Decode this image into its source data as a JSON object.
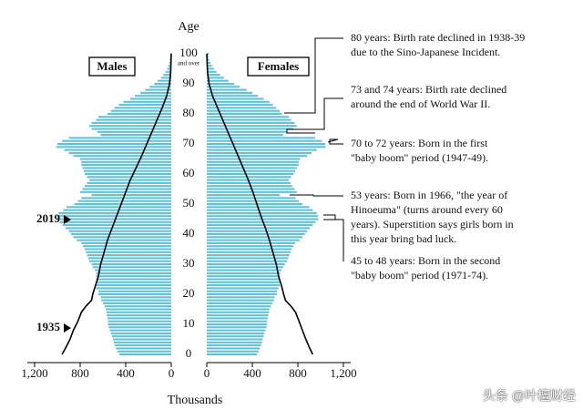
{
  "chart_data": {
    "type": "population-pyramid",
    "title": "Age",
    "x_title": "Thousands",
    "left_label": "Males",
    "right_label": "Females",
    "x_ticks": {
      "male": [
        "1,200",
        "800",
        "400",
        "0"
      ],
      "female": [
        "0",
        "400",
        "800",
        "1,200"
      ],
      "values": [
        1200,
        800,
        400,
        0
      ]
    },
    "xlim": [
      0,
      1200
    ],
    "ylim": [
      0,
      100
    ],
    "y_ticks": [
      "0",
      "10",
      "20",
      "30",
      "40",
      "50",
      "60",
      "70",
      "80",
      "90",
      "100"
    ],
    "y_top_extra": "and over",
    "bar_color": "#5bc1dc",
    "line_color": "#000000",
    "ages": [
      0,
      1,
      2,
      3,
      4,
      5,
      6,
      7,
      8,
      9,
      10,
      11,
      12,
      13,
      14,
      15,
      16,
      17,
      18,
      19,
      20,
      21,
      22,
      23,
      24,
      25,
      26,
      27,
      28,
      29,
      30,
      31,
      32,
      33,
      34,
      35,
      36,
      37,
      38,
      39,
      40,
      41,
      42,
      43,
      44,
      45,
      46,
      47,
      48,
      49,
      50,
      51,
      52,
      53,
      54,
      55,
      56,
      57,
      58,
      59,
      60,
      61,
      62,
      63,
      64,
      65,
      66,
      67,
      68,
      69,
      70,
      71,
      72,
      73,
      74,
      75,
      76,
      77,
      78,
      79,
      80,
      81,
      82,
      83,
      84,
      85,
      86,
      87,
      88,
      89,
      90,
      91,
      92,
      93,
      94,
      95,
      96,
      97,
      98,
      99,
      100
    ],
    "series": [
      {
        "name": "Males",
        "values": [
          455,
          475,
          485,
          495,
          505,
          510,
          520,
          530,
          540,
          550,
          555,
          555,
          560,
          565,
          570,
          575,
          585,
          600,
          615,
          620,
          640,
          640,
          660,
          670,
          660,
          660,
          660,
          660,
          670,
          690,
          700,
          720,
          730,
          740,
          750,
          760,
          775,
          790,
          830,
          860,
          880,
          900,
          930,
          955,
          980,
          1005,
          1000,
          990,
          950,
          920,
          850,
          820,
          790,
          700,
          800,
          780,
          760,
          740,
          720,
          740,
          760,
          770,
          780,
          790,
          790,
          800,
          860,
          900,
          940,
          1010,
          1000,
          960,
          900,
          620,
          650,
          700,
          720,
          700,
          660,
          640,
          560,
          530,
          500,
          460,
          420,
          360,
          320,
          270,
          230,
          190,
          150,
          120,
          90,
          70,
          50,
          36,
          26,
          18,
          13,
          9,
          10
        ]
      },
      {
        "name": "Females",
        "values": [
          440,
          455,
          465,
          475,
          485,
          490,
          500,
          505,
          515,
          525,
          530,
          530,
          535,
          540,
          545,
          550,
          560,
          575,
          590,
          595,
          615,
          615,
          630,
          640,
          640,
          640,
          640,
          645,
          655,
          670,
          685,
          705,
          715,
          725,
          735,
          745,
          760,
          775,
          815,
          840,
          860,
          880,
          905,
          930,
          955,
          980,
          975,
          965,
          930,
          900,
          840,
          810,
          780,
          640,
          790,
          770,
          750,
          735,
          720,
          740,
          760,
          775,
          790,
          805,
          810,
          820,
          880,
          920,
          965,
          1040,
          1040,
          1010,
          950,
          670,
          700,
          760,
          790,
          770,
          740,
          720,
          660,
          640,
          610,
          580,
          550,
          500,
          450,
          400,
          350,
          290,
          240,
          190,
          150,
          115,
          85,
          62,
          45,
          32,
          22,
          15,
          16
        ]
      }
    ],
    "lines": [
      {
        "side": "male",
        "points": [
          [
            0,
            960
          ],
          [
            2,
            930
          ],
          [
            5,
            890
          ],
          [
            8,
            860
          ],
          [
            11,
            820
          ],
          [
            14,
            790
          ],
          [
            16,
            750
          ],
          [
            18,
            700
          ],
          [
            20,
            690
          ],
          [
            23,
            665
          ],
          [
            26,
            640
          ],
          [
            30,
            620
          ],
          [
            34,
            590
          ],
          [
            38,
            560
          ],
          [
            42,
            520
          ],
          [
            46,
            480
          ],
          [
            50,
            440
          ],
          [
            54,
            400
          ],
          [
            58,
            360
          ],
          [
            62,
            310
          ],
          [
            66,
            260
          ],
          [
            70,
            215
          ],
          [
            74,
            170
          ],
          [
            78,
            125
          ],
          [
            82,
            80
          ],
          [
            86,
            40
          ],
          [
            90,
            15
          ],
          [
            94,
            5
          ],
          [
            100,
            0
          ]
        ]
      },
      {
        "side": "female",
        "points": [
          [
            0,
            930
          ],
          [
            2,
            905
          ],
          [
            5,
            870
          ],
          [
            8,
            840
          ],
          [
            11,
            810
          ],
          [
            14,
            780
          ],
          [
            16,
            740
          ],
          [
            18,
            690
          ],
          [
            20,
            675
          ],
          [
            23,
            655
          ],
          [
            26,
            630
          ],
          [
            30,
            610
          ],
          [
            34,
            580
          ],
          [
            38,
            550
          ],
          [
            42,
            515
          ],
          [
            46,
            475
          ],
          [
            50,
            440
          ],
          [
            54,
            405
          ],
          [
            58,
            365
          ],
          [
            62,
            320
          ],
          [
            66,
            275
          ],
          [
            70,
            230
          ],
          [
            74,
            185
          ],
          [
            78,
            140
          ],
          [
            82,
            95
          ],
          [
            86,
            50
          ],
          [
            90,
            20
          ],
          [
            94,
            6
          ],
          [
            100,
            0
          ]
        ]
      }
    ],
    "markers": [
      {
        "label": "2019",
        "age": 48
      },
      {
        "label": "1935",
        "age": 10
      }
    ],
    "annotations": [
      {
        "lines": [
          "80 years:  Birth rate declined in 1938-39",
          "due to the Sino-Japanese Incident."
        ],
        "age": 80
      },
      {
        "lines": [
          "73 and 74 years:  Birth rate declined",
          "around the end of World War II."
        ],
        "age": 73.5
      },
      {
        "lines": [
          "70 to 72 years:  Born in the first",
          "\"baby boom\" period (1947-49)."
        ],
        "age": 71
      },
      {
        "lines": [
          "53 years:  Born in 1966, \"the year of",
          "Hinoeuma\" (turns around every 60",
          "years). Superstition says girls born in",
          "this year bring bad luck."
        ],
        "age": 53
      },
      {
        "lines": [
          "45 to 48 years:  Born in the second",
          "\"baby boom\" period (1971-74)."
        ],
        "age": 46.5
      }
    ]
  },
  "watermark": "头条 @叶檀财经"
}
